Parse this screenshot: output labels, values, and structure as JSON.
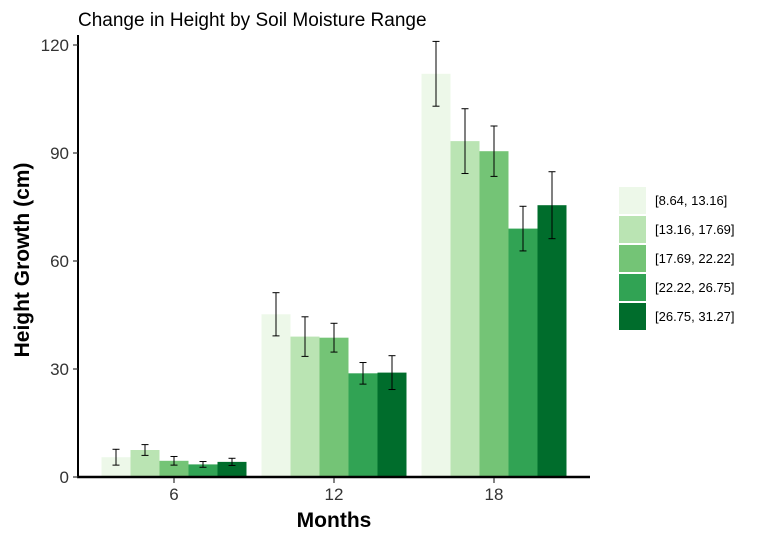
{
  "chart_data": {
    "type": "bar",
    "title": "Change in Height by Soil Moisture Range",
    "xlabel": "Months",
    "ylabel": "Height Growth (cm)",
    "categories": [
      "6",
      "12",
      "18"
    ],
    "ylim": [
      0,
      120
    ],
    "yticks": [
      0,
      30,
      60,
      90,
      120
    ],
    "grid": false,
    "legend_position": "right",
    "series": [
      {
        "name": "[8.64, 13.16]",
        "color": "#edf8e9",
        "values": [
          5.5,
          45.2,
          112.0
        ],
        "err": [
          2.2,
          6.0,
          9.0
        ]
      },
      {
        "name": "[13.16, 17.69]",
        "color": "#bae4b3",
        "values": [
          7.5,
          39.0,
          93.3
        ],
        "err": [
          1.5,
          5.5,
          9.0
        ]
      },
      {
        "name": "[17.69, 22.22]",
        "color": "#74c476",
        "values": [
          4.5,
          38.7,
          90.5
        ],
        "err": [
          1.2,
          4.0,
          7.0
        ]
      },
      {
        "name": "[22.22, 26.75]",
        "color": "#31a354",
        "values": [
          3.5,
          28.8,
          69.0
        ],
        "err": [
          0.8,
          3.0,
          6.2
        ]
      },
      {
        "name": "[26.75, 31.27]",
        "color": "#006d2c",
        "values": [
          4.2,
          29.0,
          75.5
        ],
        "err": [
          1.0,
          4.7,
          9.3
        ]
      }
    ]
  }
}
